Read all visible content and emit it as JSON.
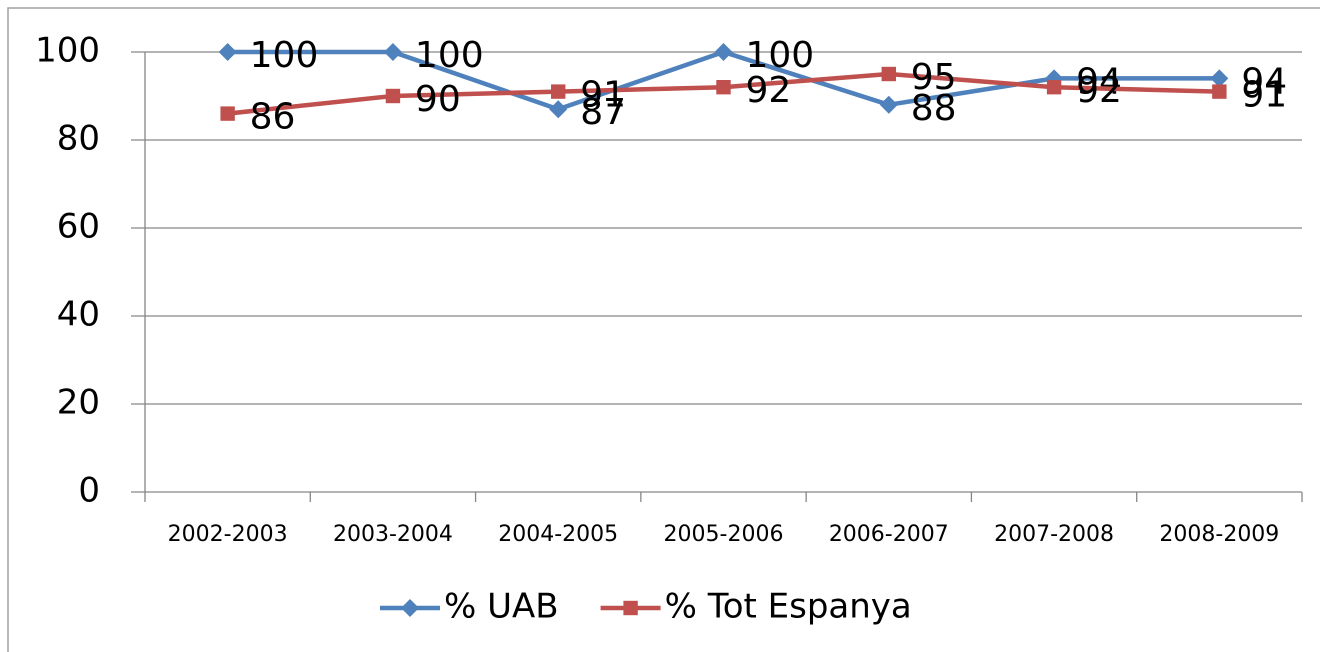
{
  "chart_data": {
    "type": "line",
    "categories": [
      "2002-2003",
      "2003-2004",
      "2004-2005",
      "2005-2006",
      "2006-2007",
      "2007-2008",
      "2008-2009"
    ],
    "series": [
      {
        "name": "% UAB",
        "color": "#4f81bd",
        "marker": "diamond",
        "values": [
          100,
          100,
          87,
          100,
          88,
          94,
          94
        ]
      },
      {
        "name": "% Tot Espanya",
        "color": "#c0504d",
        "marker": "square",
        "values": [
          86,
          90,
          91,
          92,
          95,
          92,
          91
        ]
      }
    ],
    "ylim": [
      0,
      100
    ],
    "yticks": [
      0,
      20,
      40,
      60,
      80,
      100
    ],
    "grid": true,
    "legend": "bottom"
  }
}
